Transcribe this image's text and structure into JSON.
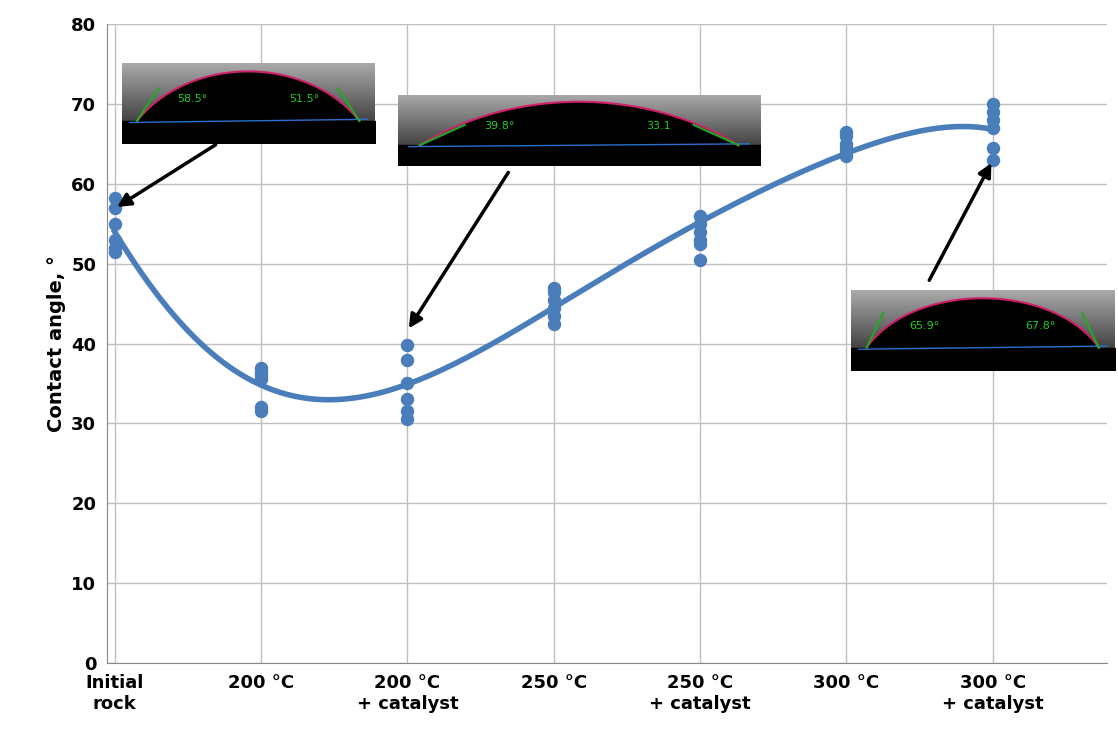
{
  "chart_data": {
    "type": "scatter",
    "y_label": "Contact angle, °",
    "categories": [
      "Initial\nrock",
      "200 °C",
      "200 °C\n+ catalyst",
      "250 °C",
      "250 °C\n+ catalyst",
      "300 °C",
      "300 °C\n+ catalyst"
    ],
    "series": [
      {
        "type": "scatter",
        "color": "#4a7ebb",
        "marker": "o",
        "values": [
          [
            58.2,
            57.0,
            55.0,
            53.0,
            52.0,
            51.5
          ],
          [
            37.0,
            36.5,
            36.0,
            35.5,
            32.0,
            31.5
          ],
          [
            39.8,
            38.0,
            35.0,
            33.0,
            31.5,
            30.5
          ],
          [
            47.0,
            46.5,
            45.5,
            44.5,
            43.5,
            42.5
          ],
          [
            56.0,
            55.0,
            54.0,
            53.0,
            52.5,
            50.5
          ],
          [
            66.5,
            66.0,
            65.0,
            64.5,
            64.0,
            63.5
          ],
          [
            70.0,
            69.0,
            68.0,
            67.0,
            64.5,
            63.0
          ]
        ]
      },
      {
        "type": "line",
        "color": "#4a7ebb",
        "line_style": "solid",
        "values": [
          54.0,
          34.8,
          34.9,
          44.5,
          55.2,
          63.8,
          66.8
        ]
      }
    ],
    "ylim": [
      0,
      80
    ],
    "yticks": [
      0,
      10,
      20,
      30,
      40,
      50,
      60,
      70,
      80
    ],
    "grid": true,
    "annotations": [
      {
        "category": "Initial\nrock",
        "value": 56.9,
        "left_angle": "58.5°",
        "right_angle": "51.5°"
      },
      {
        "category": "200 °C\n+ catalyst",
        "value": 41.6,
        "left_angle": "39.8°",
        "right_angle": "33.1"
      },
      {
        "category": "300 °C\n+ catalyst",
        "value": 62.9,
        "left_angle": "65.9°",
        "right_angle": "67.8°"
      }
    ]
  }
}
